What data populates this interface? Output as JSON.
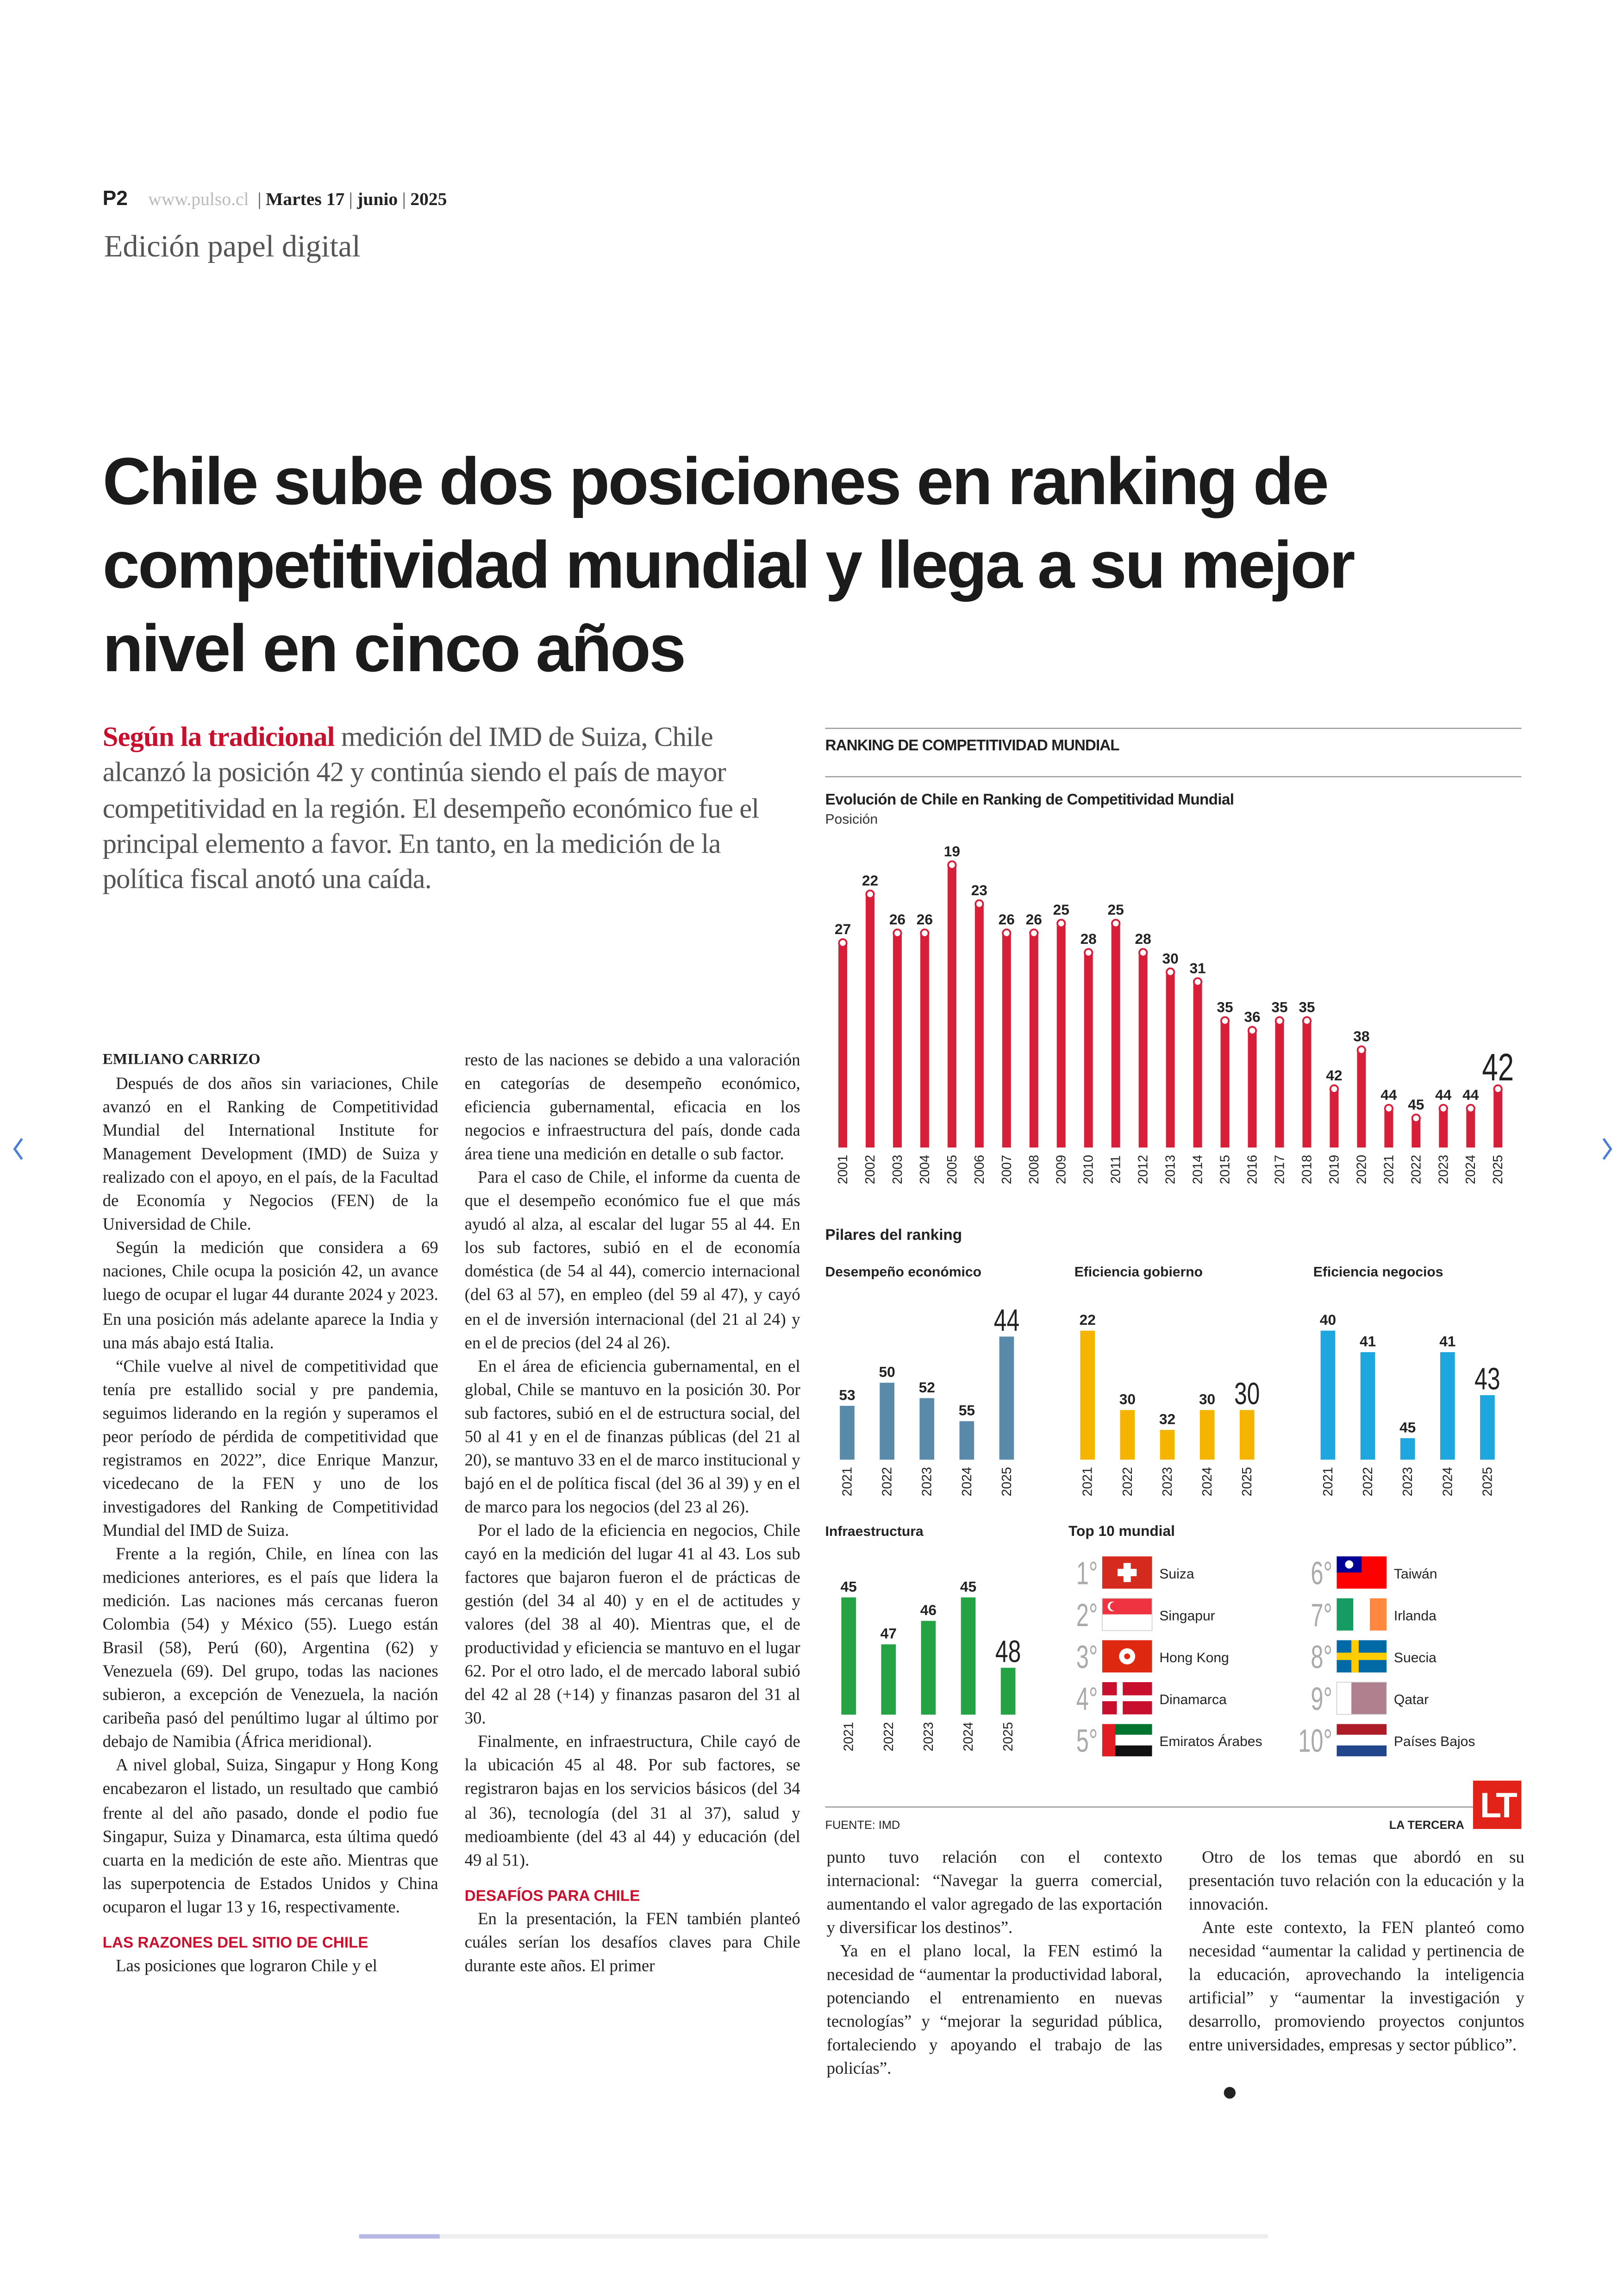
{
  "header": {
    "page": "P2",
    "site": "www.pulso.cl",
    "day": "Martes 17",
    "month": "junio",
    "year": "2025",
    "edition": "Edición papel digital"
  },
  "headline": "Chile sube dos posiciones en ranking de competitividad mundial y llega a su mejor nivel en cinco años",
  "lead": {
    "highlight": "Según la tradicional",
    "text": "medición del IMD de Suiza, Chile alcanzó la posición 42 y continúa siendo el país de mayor competitividad en la región. El desempeño económico fue el principal elemento a favor. En tanto, en la medición de la política fiscal anotó una caída."
  },
  "article": {
    "columns": [
      {
        "blocks": [
          {
            "byline": "EMILIANO CARRIZO"
          },
          {
            "text": "Después de dos años sin variaciones, Chile avanzó en el Ranking de Competitividad Mundial del International Institute for Management Development (IMD) de Suiza y realizado con el apoyo, en el país, de la Facultad de Economía y Negocios (FEN) de la Universidad de Chile."
          },
          {
            "text": "Según la medición que considera a 69 naciones, Chile ocupa la posición 42, un avance luego de ocupar el lugar 44 durante 2024 y 2023. En una posición más adelante aparece la India y una más abajo está Italia."
          },
          {
            "text": "“Chile vuelve al nivel de competitividad que tenía pre estallido social y pre pandemia, seguimos liderando en la región y superamos el peor período de pérdida de competitividad que registramos en 2022”, dice Enrique Manzur, vicedecano de la FEN y uno de los investigadores del Ranking de Competitividad Mundial del IMD de Suiza."
          },
          {
            "text": "Frente a la región, Chile, en línea con las mediciones anteriores, es el país que lidera la medición. Las naciones más cercanas fueron Colombia (54) y México (55). Luego están Brasil (58), Perú (60), Argentina (62) y Venezuela (69). Del grupo, todas las naciones subieron, a excepción de Venezuela, la nación caribeña pasó del penúltimo lugar al último por debajo de Namibia (África meridional)."
          },
          {
            "text": "A nivel global, Suiza, Singapur y Hong Kong encabezaron el listado, un resultado que cambió frente al del año pasado, donde el podio fue Singapur, Suiza y Dinamarca, esta última quedó cuarta en la medición de este año. Mientras que las superpotencia de Estados Unidos y China ocuparon el lugar 13 y 16, respectivamente."
          },
          {
            "heading": "LAS RAZONES DEL SITIO DE CHILE"
          },
          {
            "text": "Las posiciones que lograron Chile y el"
          }
        ]
      },
      {
        "blocks": [
          {
            "text": "resto de las naciones se debido a una valoración en categorías de desempeño económico, eficiencia gubernamental, eficacia en los negocios e infraestructura del país, donde cada área tiene una medición en detalle o sub factor."
          },
          {
            "text": "Para el caso de Chile, el informe da cuenta de que el desempeño económico fue el que más ayudó al alza, al escalar del lugar 55 al 44. En los sub factores, subió en el de economía doméstica (de 54 al 44), comercio internacional (del 63 al 57), en empleo (del 59 al 47), y cayó en el de inversión internacional (del 21 al 24) y en el de precios (del 24 al 26)."
          },
          {
            "text": "En el área de eficiencia gubernamental, en el global, Chile se mantuvo en la posición 30. Por sub factores, subió en el de estructura social, del 50 al 41 y en el de finanzas públicas (del 21 al 20), se mantuvo 33 en el de marco institucional y bajó en el de política fiscal (del 36 al 39) y en el de marco para los negocios (del 23 al 26)."
          },
          {
            "text": "Por el lado de la eficiencia en negocios, Chile cayó en la medición del lugar 41 al 43. Los sub factores que bajaron fueron el de prácticas de gestión (del 34 al 40) y en el de actitudes y valores (del 38 al 40). Mientras que, el de productividad y eficiencia se mantuvo en el lugar 62. Por el otro lado, el de mercado laboral subió del 42 al 28 (+14) y finanzas pasaron del 31 al 30."
          },
          {
            "text": "Finalmente, en infraestructura, Chile cayó de la ubicación 45 al 48. Por sub factores, se registraron bajas en los servicios básicos (del 34 al 36), tecnología (del 31 al 37), salud y medioambiente (del 43 al 44) y educación (del 49 al 51)."
          },
          {
            "heading": "DESAFÍOS PARA CHILE"
          },
          {
            "text": "En la presentación, la FEN también planteó cuáles serían los desafíos claves para Chile durante este años. El primer"
          }
        ]
      },
      {
        "blocks": [
          {
            "text": "punto tuvo relación con el contexto internacional: “Navegar la guerra comercial, aumentando el valor agregado de las exportación y diversificar los destinos”."
          },
          {
            "text": "Ya en el plano local, la FEN estimó la necesidad de “aumentar la productividad laboral, potenciando el entrenamiento en nuevas tecnologías” y “mejorar la seguridad pública, fortaleciendo y apoyando el trabajo de las policías”."
          }
        ]
      },
      {
        "blocks": [
          {
            "text": "Otro de los temas que abordó en su presentación tuvo relación con la educación y la innovación."
          },
          {
            "text": "Ante este contexto, la FEN planteó como necesidad “aumentar la calidad y pertinencia de la educación, aprovechando la inteligencia artificial” y “aumentar la investigación y desarrollo, promoviendo proyectos conjuntos entre universidades, empresas y sector público”."
          }
        ]
      }
    ]
  },
  "infographic": {
    "title": "RANKING DE COMPETITIVIDAD MUNDIAL",
    "main_chart": {
      "type": "bar",
      "title": "Evolución de Chile en Ranking de Competitividad Mundial",
      "subtitle": "Posición",
      "categories": [
        "2001",
        "2002",
        "2003",
        "2004",
        "2005",
        "2006",
        "2007",
        "2008",
        "2009",
        "2010",
        "2011",
        "2012",
        "2013",
        "2014",
        "2015",
        "2016",
        "2017",
        "2018",
        "2019",
        "2020",
        "2021",
        "2022",
        "2023",
        "2024",
        "2025"
      ],
      "values": [
        27,
        22,
        26,
        26,
        19,
        23,
        26,
        26,
        25,
        28,
        25,
        28,
        30,
        31,
        35,
        36,
        35,
        35,
        42,
        38,
        44,
        45,
        44,
        44,
        42
      ],
      "color": "#d81f3a",
      "ylim": [
        48,
        0
      ]
    },
    "pillars": {
      "title": "Pilares del ranking",
      "charts": [
        {
          "type": "bar",
          "title": "Desempeño económico",
          "categories": [
            "2021",
            "2022",
            "2023",
            "2024",
            "2025"
          ],
          "values": [
            53,
            50,
            52,
            55,
            44
          ],
          "color": "#5a8aaa",
          "ylim": [
            60,
            0
          ]
        },
        {
          "type": "bar",
          "title": "Eficiencia gobierno",
          "categories": [
            "2021",
            "2022",
            "2023",
            "2024",
            "2025"
          ],
          "values": [
            22,
            30,
            32,
            30,
            30
          ],
          "color": "#f4b400",
          "ylim": [
            35,
            0
          ]
        },
        {
          "type": "bar",
          "title": "Eficiencia negocios",
          "categories": [
            "2021",
            "2022",
            "2023",
            "2024",
            "2025"
          ],
          "values": [
            40,
            41,
            45,
            41,
            43
          ],
          "color": "#1ea6df",
          "ylim": [
            46,
            0
          ]
        },
        {
          "type": "bar",
          "title": "Infraestructura",
          "categories": [
            "2021",
            "2022",
            "2023",
            "2024",
            "2025"
          ],
          "values": [
            45,
            47,
            46,
            45,
            48
          ],
          "color": "#25a244",
          "ylim": [
            50,
            0
          ]
        }
      ]
    },
    "top10": {
      "title": "Top 10 mundial",
      "entries": [
        {
          "rank": "1°",
          "name": "Suiza"
        },
        {
          "rank": "2°",
          "name": "Singapur"
        },
        {
          "rank": "3°",
          "name": "Hong Kong"
        },
        {
          "rank": "4°",
          "name": "Dinamarca"
        },
        {
          "rank": "5°",
          "name": "Emiratos Árabes"
        },
        {
          "rank": "6°",
          "name": "Taiwán"
        },
        {
          "rank": "7°",
          "name": "Irlanda"
        },
        {
          "rank": "8°",
          "name": "Suecia"
        },
        {
          "rank": "9°",
          "name": "Qatar"
        },
        {
          "rank": "10°",
          "name": "Países Bajos"
        }
      ]
    },
    "source": "FUENTE: IMD",
    "brand": "LA TERCERA",
    "logo": "LT"
  }
}
